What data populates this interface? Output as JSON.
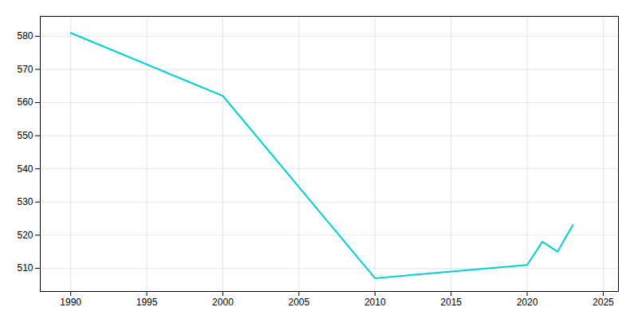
{
  "chart_data": {
    "type": "line",
    "x": [
      1990,
      2000,
      2010,
      2020,
      2021,
      2022,
      2023
    ],
    "values": [
      581,
      562,
      507,
      511,
      518,
      515,
      523
    ],
    "color": "#00CED1",
    "xlim": [
      1988,
      2026
    ],
    "ylim": [
      503,
      586
    ],
    "xticks": [
      1990,
      1995,
      2000,
      2005,
      2010,
      2015,
      2020,
      2025
    ],
    "yticks": [
      510,
      520,
      530,
      540,
      550,
      560,
      570,
      580
    ],
    "grid": true
  }
}
